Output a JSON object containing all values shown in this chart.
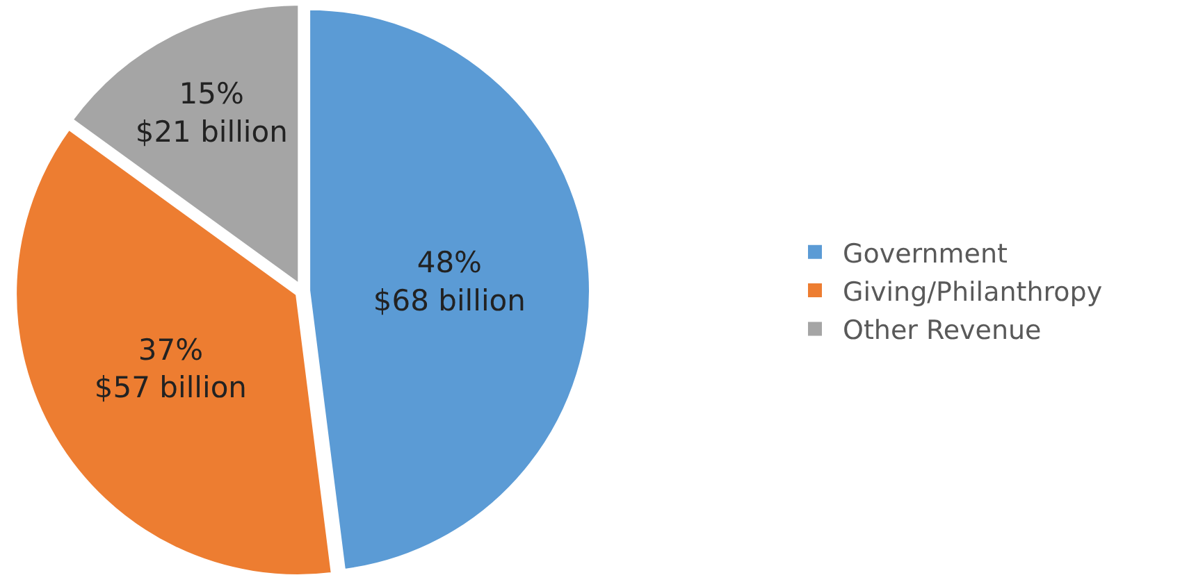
{
  "chart_data": {
    "type": "pie",
    "categories": [
      "Government",
      "Giving/Philanthropy",
      "Other Revenue"
    ],
    "values": [
      48,
      37,
      15
    ],
    "colors": [
      "#5b9bd5",
      "#ed7d31",
      "#a5a5a5"
    ],
    "value_labels": [
      "48%\n$68 billion",
      "37%\n$57 billion",
      "15%\n$21 billion"
    ],
    "legend": "right"
  }
}
